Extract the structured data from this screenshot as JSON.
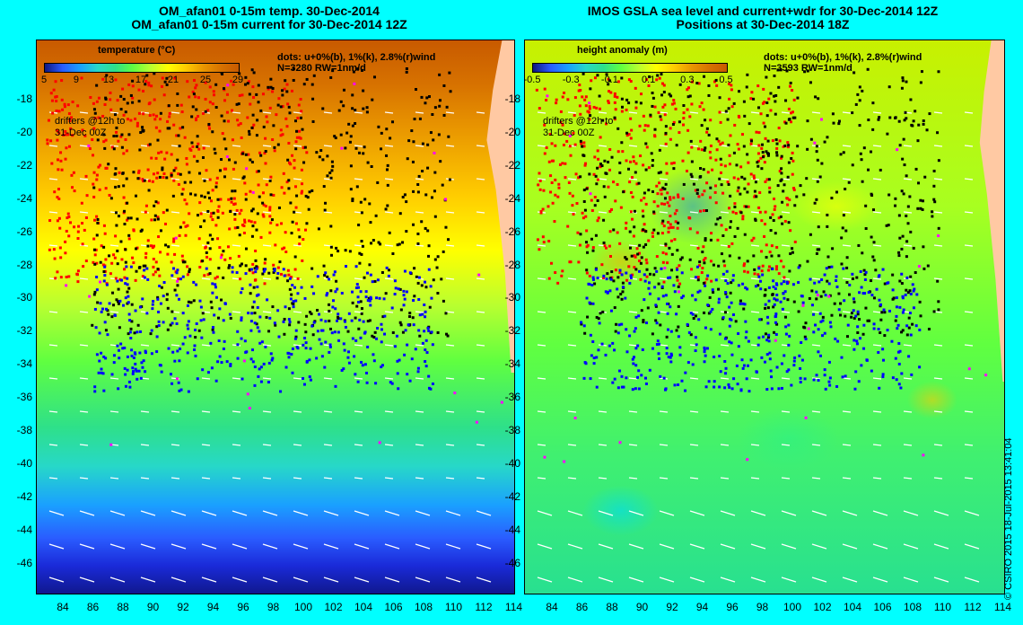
{
  "left_panel": {
    "title_line1": "OM_afan01 0-15m temp. 30-Dec-2014",
    "title_line2": "OM_afan01 0-15m current for 30-Dec-2014 12Z",
    "colorbar_title": "temperature (°C)",
    "colorbar_ticks": [
      "5",
      "9",
      "13",
      "17",
      "21",
      "25",
      "29"
    ],
    "info_line1": "dots: u+0%(b), 1%(k), 2.8%(r)wind",
    "info_line2": "N=3280 RW=1nm/d",
    "drifter_note_line1": "drifters @12h to",
    "drifter_note_line2": "31-Dec 00Z"
  },
  "right_panel": {
    "title_line1": "IMOS GSLA sea level and current+wdr for 30-Dec-2014 12Z",
    "title_line2": "Positions at 30-Dec-2014 18Z",
    "colorbar_title": "height anomaly (m)",
    "colorbar_ticks": [
      "-0.5",
      "-0.3",
      "-0.1",
      "0.1",
      "0.3",
      "0.5"
    ],
    "info_line1": "dots: u+0%(b), 1%(k), 2.8%(r)wind",
    "info_line2": "N=3593 RW=1nm/d",
    "drifter_note_line1": "drifters @12h to",
    "drifter_note_line2": "31-Dec 00Z"
  },
  "y_axis_labels": [
    "-18",
    "-20",
    "-22",
    "-24",
    "-26",
    "-28",
    "-30",
    "-32",
    "-34",
    "-36",
    "-38",
    "-40",
    "-42",
    "-44",
    "-46"
  ],
  "x_axis_labels": [
    "84",
    "86",
    "88",
    "90",
    "92",
    "94",
    "96",
    "98",
    "100",
    "102",
    "104",
    "106",
    "108",
    "110",
    "112",
    "114"
  ],
  "credit": "© CSIRO 2015   18-Jul-2015 13:41:04",
  "colors": {
    "background": "#00ffff",
    "land": "#ffc9a3",
    "dot_blue": "#0000ff",
    "dot_black": "#000000",
    "dot_red": "#ff0000",
    "dot_magenta": "#ff00ff",
    "arrows": "#ffffff"
  }
}
